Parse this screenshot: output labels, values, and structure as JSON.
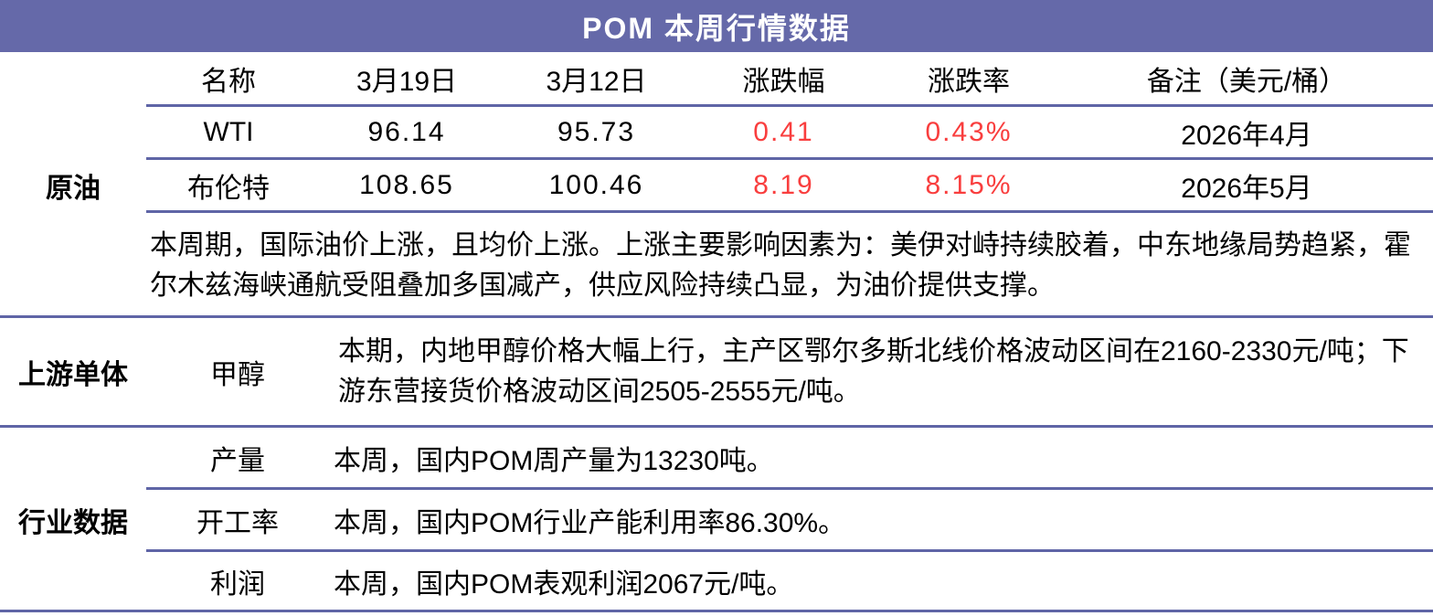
{
  "colors": {
    "accent": "#6569a9",
    "divider": "#5f65a6",
    "red": "#f93e3e",
    "text": "#000000"
  },
  "title": "POM 本周行情数据",
  "crude": {
    "label": "原油",
    "headers": {
      "name": "名称",
      "date1": "3月19日",
      "date2": "3月12日",
      "change": "涨跌幅",
      "change_pct": "涨跌率",
      "note": "备注（美元/桶）"
    },
    "rows": [
      {
        "name": "WTI",
        "date1": "96.14",
        "date2": "95.73",
        "change": "0.41",
        "change_pct": "0.43%",
        "note": "2026年4月"
      },
      {
        "name": "布伦特",
        "date1": "108.65",
        "date2": "100.46",
        "change": "8.19",
        "change_pct": "8.15%",
        "note": "2026年5月"
      }
    ],
    "summary": "本周期，国际油价上涨，且均价上涨。上涨主要影响因素为：美伊对峙持续胶着，中东地缘局势趋紧，霍尔木兹海峡通航受阻叠加多国减产，供应风险持续凸显，为油价提供支撑。"
  },
  "upstream": {
    "label": "上游单体",
    "item": "甲醇",
    "text": "本期，内地甲醇价格大幅上行，主产区鄂尔多斯北线价格波动区间在2160-2330元/吨；下游东营接货价格波动区间2505-2555元/吨。"
  },
  "industry": {
    "label": "行业数据",
    "rows": [
      {
        "item": "产量",
        "text": "本周，国内POM周产量为13230吨。"
      },
      {
        "item": "开工率",
        "text": "本周，国内POM行业产能利用率86.30%。"
      },
      {
        "item": "利润",
        "text": "本周，国内POM表观利润2067元/吨。"
      }
    ]
  }
}
